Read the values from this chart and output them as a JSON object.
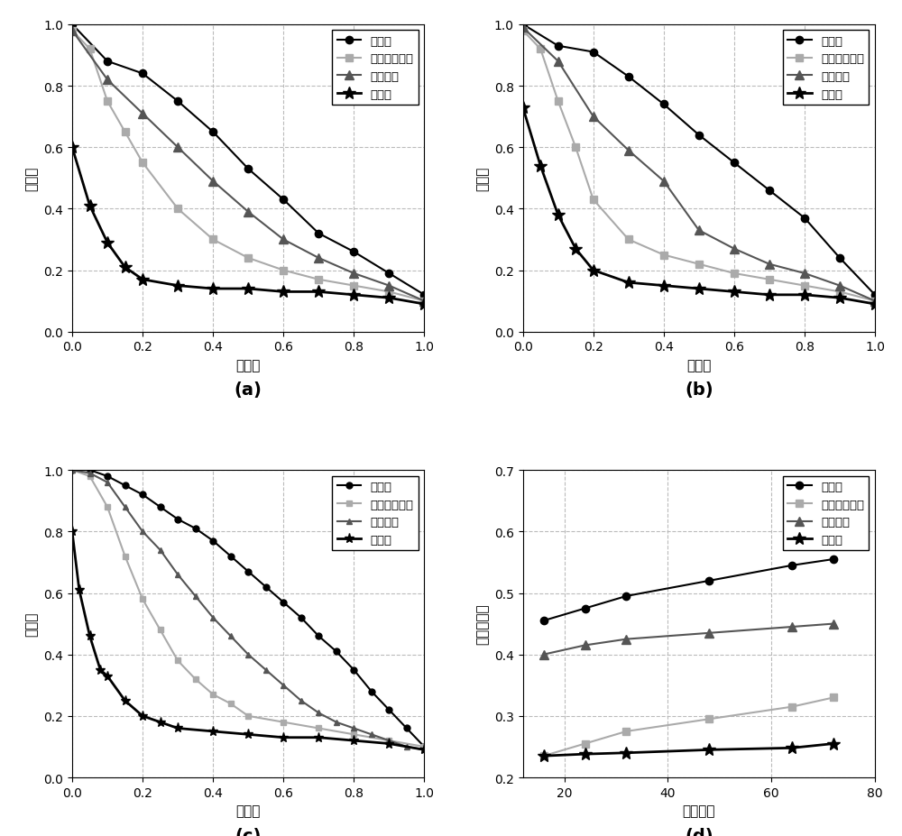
{
  "subplot_a": {
    "title": "(a)",
    "xlabel": "查全率",
    "ylabel": "查准率",
    "xlim": [
      0,
      1
    ],
    "ylim": [
      0,
      1
    ],
    "xticks": [
      0,
      0.2,
      0.4,
      0.6,
      0.8,
      1.0
    ],
    "yticks": [
      0,
      0.2,
      0.4,
      0.6,
      0.8,
      1.0
    ],
    "series": [
      {
        "name": "本发明",
        "x": [
          0.0,
          0.1,
          0.2,
          0.3,
          0.4,
          0.5,
          0.6,
          0.7,
          0.8,
          0.9,
          1.0
        ],
        "y": [
          1.0,
          0.88,
          0.84,
          0.75,
          0.65,
          0.53,
          0.43,
          0.32,
          0.26,
          0.19,
          0.12
        ],
        "color": "#000000",
        "marker": "o",
        "linestyle": "-",
        "linewidth": 1.5,
        "markersize": 6
      },
      {
        "name": "局部敏感哈希",
        "x": [
          0.0,
          0.05,
          0.1,
          0.15,
          0.2,
          0.3,
          0.4,
          0.5,
          0.6,
          0.7,
          0.8,
          0.9,
          1.0
        ],
        "y": [
          0.98,
          0.92,
          0.75,
          0.65,
          0.55,
          0.4,
          0.3,
          0.24,
          0.2,
          0.17,
          0.15,
          0.13,
          0.1
        ],
        "color": "#aaaaaa",
        "marker": "s",
        "linestyle": "-",
        "linewidth": 1.5,
        "markersize": 6
      },
      {
        "name": "迭代量化",
        "x": [
          0.0,
          0.1,
          0.2,
          0.3,
          0.4,
          0.5,
          0.6,
          0.7,
          0.8,
          0.9,
          1.0
        ],
        "y": [
          0.98,
          0.82,
          0.71,
          0.6,
          0.49,
          0.39,
          0.3,
          0.24,
          0.19,
          0.15,
          0.1
        ],
        "color": "#555555",
        "marker": "^",
        "linestyle": "-",
        "linewidth": 1.5,
        "markersize": 7
      },
      {
        "name": "谱哈希",
        "x": [
          0.0,
          0.05,
          0.1,
          0.15,
          0.2,
          0.3,
          0.4,
          0.5,
          0.6,
          0.7,
          0.8,
          0.9,
          1.0
        ],
        "y": [
          0.6,
          0.41,
          0.29,
          0.21,
          0.17,
          0.15,
          0.14,
          0.14,
          0.13,
          0.13,
          0.12,
          0.11,
          0.09
        ],
        "color": "#000000",
        "marker": "*",
        "linestyle": "-",
        "linewidth": 2.0,
        "markersize": 10
      }
    ]
  },
  "subplot_b": {
    "title": "(b)",
    "xlabel": "查全率",
    "ylabel": "查准率",
    "xlim": [
      0,
      1
    ],
    "ylim": [
      0,
      1
    ],
    "xticks": [
      0,
      0.2,
      0.4,
      0.6,
      0.8,
      1.0
    ],
    "yticks": [
      0,
      0.2,
      0.4,
      0.6,
      0.8,
      1.0
    ],
    "series": [
      {
        "name": "本发明",
        "x": [
          0.0,
          0.1,
          0.2,
          0.3,
          0.4,
          0.5,
          0.6,
          0.7,
          0.8,
          0.9,
          1.0
        ],
        "y": [
          1.0,
          0.93,
          0.91,
          0.83,
          0.74,
          0.64,
          0.55,
          0.46,
          0.37,
          0.24,
          0.12
        ],
        "color": "#000000",
        "marker": "o",
        "linestyle": "-",
        "linewidth": 1.5,
        "markersize": 6
      },
      {
        "name": "局部敏感哈希",
        "x": [
          0.0,
          0.05,
          0.1,
          0.15,
          0.2,
          0.3,
          0.4,
          0.5,
          0.6,
          0.7,
          0.8,
          0.9,
          1.0
        ],
        "y": [
          0.98,
          0.92,
          0.75,
          0.6,
          0.43,
          0.3,
          0.25,
          0.22,
          0.19,
          0.17,
          0.15,
          0.13,
          0.1
        ],
        "color": "#aaaaaa",
        "marker": "s",
        "linestyle": "-",
        "linewidth": 1.5,
        "markersize": 6
      },
      {
        "name": "迭代量化",
        "x": [
          0.0,
          0.1,
          0.2,
          0.3,
          0.4,
          0.5,
          0.6,
          0.7,
          0.8,
          0.9,
          1.0
        ],
        "y": [
          0.99,
          0.88,
          0.7,
          0.59,
          0.49,
          0.33,
          0.27,
          0.22,
          0.19,
          0.15,
          0.1
        ],
        "color": "#555555",
        "marker": "^",
        "linestyle": "-",
        "linewidth": 1.5,
        "markersize": 7
      },
      {
        "name": "谱哈希",
        "x": [
          0.0,
          0.05,
          0.1,
          0.15,
          0.2,
          0.3,
          0.4,
          0.5,
          0.6,
          0.7,
          0.8,
          0.9,
          1.0
        ],
        "y": [
          0.73,
          0.54,
          0.38,
          0.27,
          0.2,
          0.16,
          0.15,
          0.14,
          0.13,
          0.12,
          0.12,
          0.11,
          0.09
        ],
        "color": "#000000",
        "marker": "*",
        "linestyle": "-",
        "linewidth": 2.0,
        "markersize": 10
      }
    ]
  },
  "subplot_c": {
    "title": "(c)",
    "xlabel": "查全率",
    "ylabel": "查准率",
    "xlim": [
      0,
      1
    ],
    "ylim": [
      0,
      1
    ],
    "xticks": [
      0,
      0.2,
      0.4,
      0.6,
      0.8,
      1.0
    ],
    "yticks": [
      0,
      0.2,
      0.4,
      0.6,
      0.8,
      1.0
    ],
    "series": [
      {
        "name": "本发明",
        "x": [
          0.0,
          0.05,
          0.1,
          0.15,
          0.2,
          0.25,
          0.3,
          0.35,
          0.4,
          0.45,
          0.5,
          0.55,
          0.6,
          0.65,
          0.7,
          0.75,
          0.8,
          0.85,
          0.9,
          0.95,
          1.0
        ],
        "y": [
          1.0,
          1.0,
          0.98,
          0.95,
          0.92,
          0.88,
          0.84,
          0.81,
          0.77,
          0.72,
          0.67,
          0.62,
          0.57,
          0.52,
          0.46,
          0.41,
          0.35,
          0.28,
          0.22,
          0.16,
          0.1
        ],
        "color": "#000000",
        "marker": "o",
        "linestyle": "-",
        "linewidth": 1.5,
        "markersize": 5
      },
      {
        "name": "局部敏感哈希",
        "x": [
          0.0,
          0.05,
          0.1,
          0.15,
          0.2,
          0.25,
          0.3,
          0.35,
          0.4,
          0.45,
          0.5,
          0.6,
          0.7,
          0.8,
          0.9,
          1.0
        ],
        "y": [
          1.0,
          0.98,
          0.88,
          0.72,
          0.58,
          0.48,
          0.38,
          0.32,
          0.27,
          0.24,
          0.2,
          0.18,
          0.16,
          0.14,
          0.12,
          0.1
        ],
        "color": "#aaaaaa",
        "marker": "s",
        "linestyle": "-",
        "linewidth": 1.5,
        "markersize": 5
      },
      {
        "name": "迭代量化",
        "x": [
          0.0,
          0.05,
          0.1,
          0.15,
          0.2,
          0.25,
          0.3,
          0.35,
          0.4,
          0.45,
          0.5,
          0.55,
          0.6,
          0.65,
          0.7,
          0.75,
          0.8,
          0.85,
          0.9,
          0.95,
          1.0
        ],
        "y": [
          1.0,
          0.99,
          0.96,
          0.88,
          0.8,
          0.74,
          0.66,
          0.59,
          0.52,
          0.46,
          0.4,
          0.35,
          0.3,
          0.25,
          0.21,
          0.18,
          0.16,
          0.14,
          0.12,
          0.1,
          0.09
        ],
        "color": "#555555",
        "marker": "^",
        "linestyle": "-",
        "linewidth": 1.5,
        "markersize": 5
      },
      {
        "name": "谱哈希",
        "x": [
          0.0,
          0.02,
          0.05,
          0.08,
          0.1,
          0.15,
          0.2,
          0.25,
          0.3,
          0.4,
          0.5,
          0.6,
          0.7,
          0.8,
          0.9,
          1.0
        ],
        "y": [
          0.8,
          0.61,
          0.46,
          0.35,
          0.33,
          0.25,
          0.2,
          0.18,
          0.16,
          0.15,
          0.14,
          0.13,
          0.13,
          0.12,
          0.11,
          0.09
        ],
        "color": "#000000",
        "marker": "*",
        "linestyle": "-",
        "linewidth": 2.0,
        "markersize": 8
      }
    ]
  },
  "subplot_d": {
    "title": "(d)",
    "xlabel": "编码位数",
    "ylabel": "平均准确率",
    "xlim": [
      12,
      80
    ],
    "ylim": [
      0.2,
      0.7
    ],
    "xticks": [
      20,
      40,
      60,
      80
    ],
    "yticks": [
      0.2,
      0.3,
      0.4,
      0.5,
      0.6,
      0.7
    ],
    "series": [
      {
        "name": "本发明",
        "x": [
          16,
          24,
          32,
          48,
          64,
          72
        ],
        "y": [
          0.455,
          0.475,
          0.495,
          0.52,
          0.545,
          0.555
        ],
        "color": "#000000",
        "marker": "o",
        "linestyle": "-",
        "linewidth": 1.5,
        "markersize": 6
      },
      {
        "name": "局部敏感哈希",
        "x": [
          16,
          24,
          32,
          48,
          64,
          72
        ],
        "y": [
          0.235,
          0.255,
          0.275,
          0.295,
          0.315,
          0.33
        ],
        "color": "#aaaaaa",
        "marker": "s",
        "linestyle": "-",
        "linewidth": 1.5,
        "markersize": 6
      },
      {
        "name": "迭代量化",
        "x": [
          16,
          24,
          32,
          48,
          64,
          72
        ],
        "y": [
          0.4,
          0.415,
          0.425,
          0.435,
          0.445,
          0.45
        ],
        "color": "#555555",
        "marker": "^",
        "linestyle": "-",
        "linewidth": 1.5,
        "markersize": 7
      },
      {
        "name": "谱哈希",
        "x": [
          16,
          24,
          32,
          48,
          64,
          72
        ],
        "y": [
          0.235,
          0.238,
          0.24,
          0.245,
          0.248,
          0.255
        ],
        "color": "#000000",
        "marker": "*",
        "linestyle": "-",
        "linewidth": 2.0,
        "markersize": 10
      }
    ]
  },
  "legend": {
    "loc": "upper right",
    "fontsize": 9.5
  },
  "font_size": 11,
  "tick_size": 10,
  "label_fontsize": 11,
  "title_fontsize": 14,
  "grid_color": "#bbbbbb",
  "grid_linestyle": "--",
  "background_color": "#ffffff"
}
